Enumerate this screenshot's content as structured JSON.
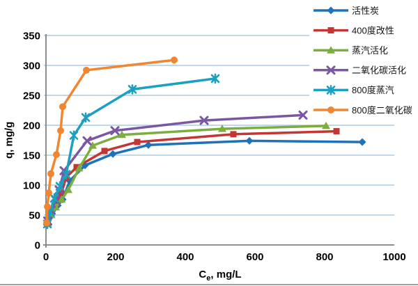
{
  "figure": {
    "type": "line-chart",
    "bottom_rule_color": "#98A2A8",
    "background_color": "#FFFFFF"
  },
  "axes": {
    "x_title_c": "C",
    "x_title_sub": "e",
    "x_title_rest": ", mg/L",
    "y_title": "q, mg/g"
  },
  "chart_data": {
    "type": "line",
    "title": "",
    "xlabel": "Ce, mg/L",
    "ylabel": "q, mg/g",
    "xlim": [
      0,
      1000
    ],
    "ylim": [
      0,
      350
    ],
    "xticks": [
      0,
      200,
      400,
      600,
      800,
      1000
    ],
    "yticks": [
      0,
      50,
      100,
      150,
      200,
      250,
      300,
      350
    ],
    "grid": "horizontal",
    "gridline_color": "#A8CBE4",
    "axis_color": "#7F7F7F",
    "legend_position": "top-right",
    "series": [
      {
        "name": "活性炭",
        "color": "#1E72B7",
        "marker": "diamond",
        "x": [
          4,
          15,
          34,
          48,
          68,
          112,
          192,
          294,
          584,
          908
        ],
        "y": [
          35,
          48,
          66,
          76,
          107,
          133,
          152,
          167,
          174,
          172
        ]
      },
      {
        "name": "400度改性",
        "color": "#C23733",
        "marker": "square",
        "x": [
          5,
          15,
          28,
          44,
          58,
          88,
          168,
          262,
          538,
          834
        ],
        "y": [
          40,
          54,
          68,
          86,
          113,
          130,
          157,
          172,
          185,
          190
        ]
      },
      {
        "name": "蒸汽活化",
        "color": "#7CAD3F",
        "marker": "triangle",
        "x": [
          5,
          15,
          28,
          45,
          64,
          95,
          134,
          218,
          506,
          804
        ],
        "y": [
          36,
          50,
          63,
          76,
          92,
          128,
          166,
          184,
          194,
          199
        ]
      },
      {
        "name": "二氧化碳活化",
        "color": "#7B57A2",
        "marker": "x",
        "x": [
          5,
          15,
          28,
          38,
          52,
          118,
          198,
          454,
          738
        ],
        "y": [
          40,
          58,
          75,
          92,
          124,
          174,
          191,
          208,
          217
        ]
      },
      {
        "name": "800度蒸汽",
        "color": "#1CA0C0",
        "marker": "asterisk",
        "x": [
          4,
          12,
          24,
          40,
          58,
          80,
          114,
          248,
          486
        ],
        "y": [
          35,
          55,
          78,
          98,
          118,
          183,
          213,
          260,
          278
        ]
      },
      {
        "name": "800度二氧化碳",
        "color": "#F18632",
        "marker": "circle",
        "x": [
          2,
          4,
          8,
          14,
          30,
          42,
          48,
          116,
          368
        ],
        "y": [
          37,
          64,
          87,
          119,
          151,
          191,
          231,
          292,
          309
        ]
      }
    ]
  }
}
